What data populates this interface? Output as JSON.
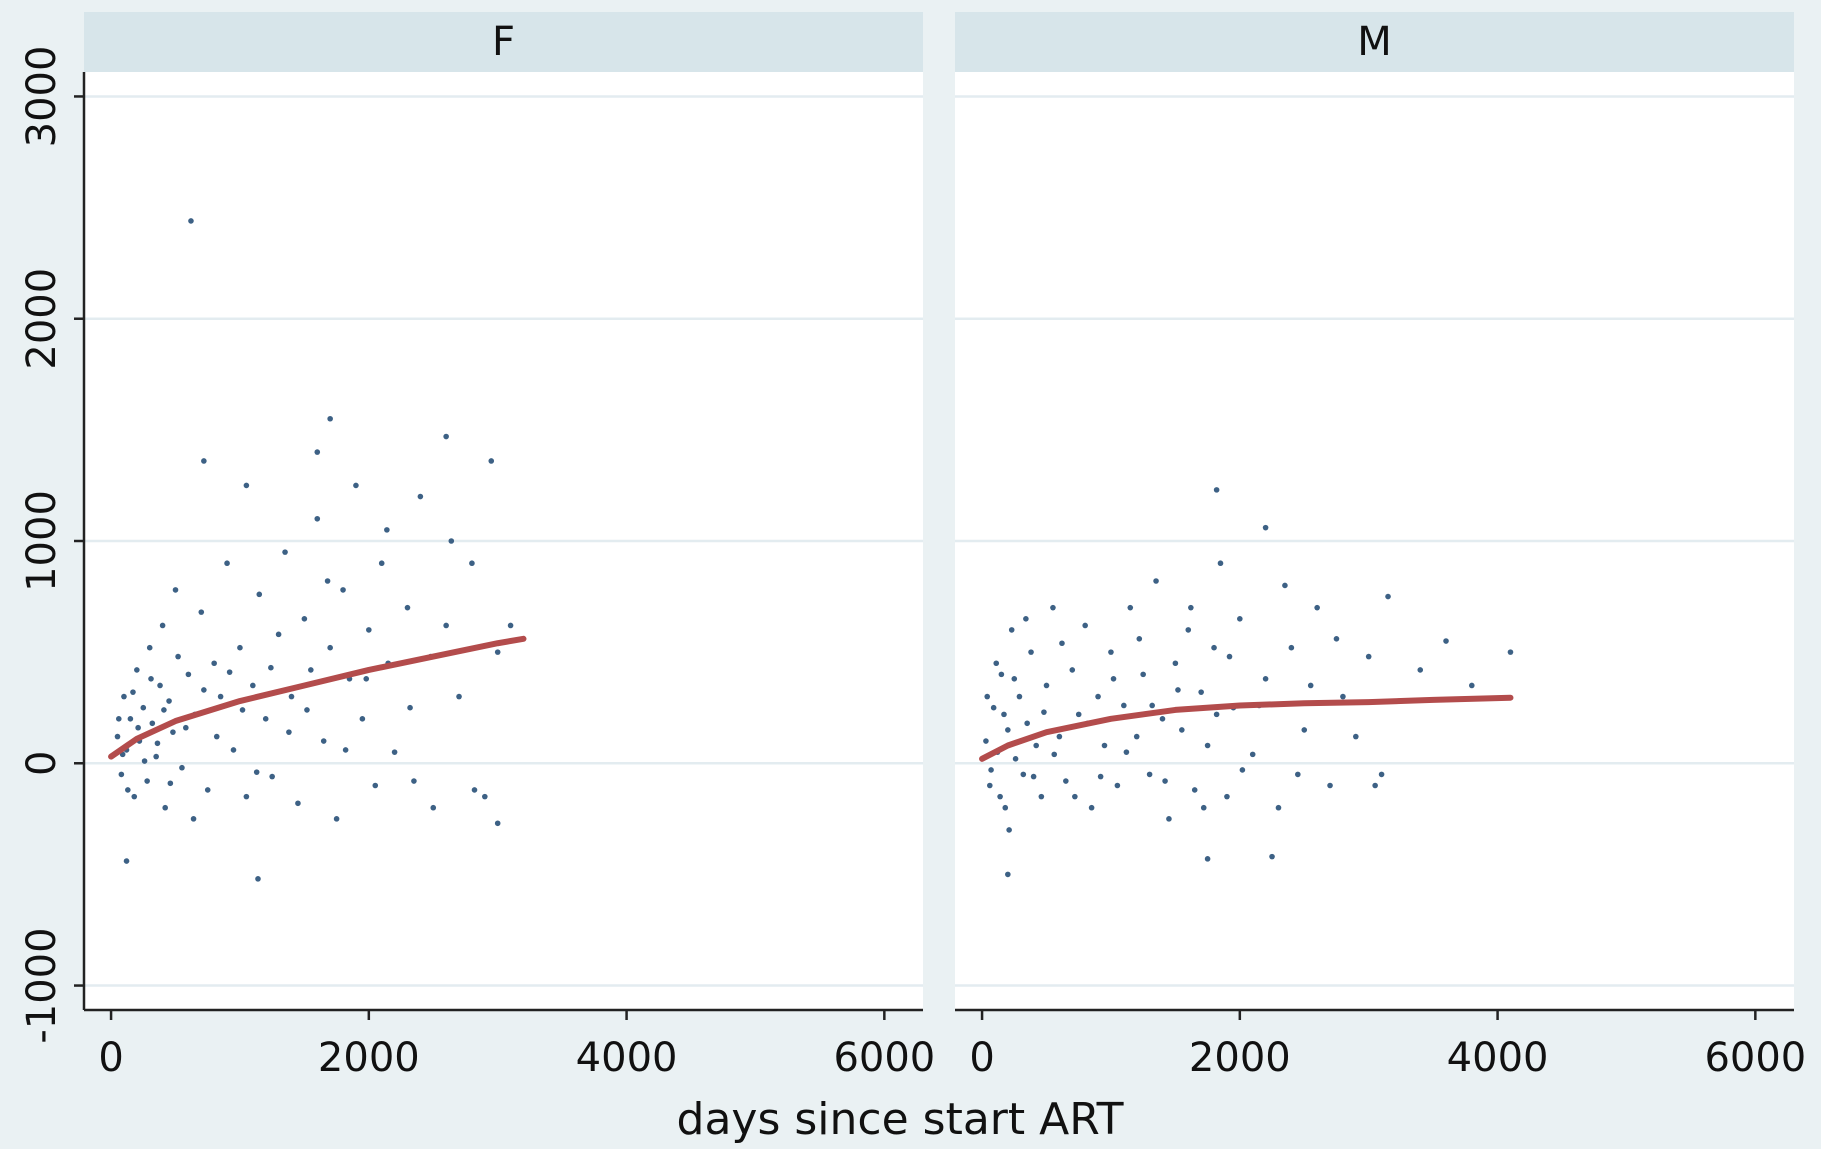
{
  "chart_data": {
    "type": "scatter",
    "xlabel": "days since start ART",
    "xlim": [
      -210,
      6300
    ],
    "xticks": [
      0,
      2000,
      4000,
      6000
    ],
    "ylim": [
      -1110,
      3110
    ],
    "yticks": [
      -1000,
      0,
      1000,
      2000,
      3000
    ],
    "grid": true,
    "panels": [
      {
        "title": "F",
        "points": {
          "color": "#3d6185",
          "x": [
            50,
            80,
            100,
            120,
            150,
            180,
            200,
            220,
            250,
            280,
            300,
            320,
            350,
            380,
            400,
            420,
            450,
            480,
            500,
            550,
            600,
            650,
            700,
            750,
            800,
            850,
            900,
            950,
            1000,
            1050,
            1100,
            1150,
            1200,
            1250,
            1300,
            1350,
            1400,
            1450,
            1500,
            1550,
            1600,
            1650,
            1700,
            1750,
            1800,
            1850,
            1900,
            1950,
            2000,
            2050,
            2100,
            2150,
            2200,
            2300,
            2400,
            2500,
            2600,
            2700,
            2800,
            2900,
            3000,
            3100,
            60,
            90,
            130,
            170,
            210,
            260,
            310,
            360,
            410,
            460,
            520,
            580,
            640,
            720,
            820,
            920,
            1020,
            1130,
            1240,
            1380,
            1520,
            1680,
            1820,
            1980,
            2140,
            2320,
            2480,
            2640,
            2820,
            620,
            1700,
            1140,
            120,
            2600,
            2950,
            3000,
            720,
            1050,
            1600,
            2350
          ],
          "y": [
            120,
            -50,
            300,
            60,
            200,
            -150,
            420,
            100,
            250,
            -80,
            520,
            180,
            30,
            350,
            620,
            -200,
            280,
            140,
            780,
            -20,
            400,
            220,
            680,
            -120,
            450,
            300,
            900,
            60,
            520,
            -150,
            350,
            760,
            200,
            -60,
            580,
            950,
            300,
            -180,
            650,
            420,
            1100,
            100,
            520,
            -250,
            780,
            380,
            1250,
            200,
            600,
            -100,
            900,
            450,
            50,
            700,
            1200,
            -200,
            620,
            300,
            900,
            -150,
            500,
            620,
            200,
            40,
            -120,
            320,
            160,
            10,
            380,
            90,
            240,
            -90,
            480,
            160,
            -250,
            330,
            120,
            410,
            240,
            -40,
            430,
            140,
            240,
            820,
            60,
            380,
            1050,
            250,
            480,
            1000,
            -120,
            2440,
            1550,
            -520,
            -440,
            1470,
            1360,
            -270,
            1360,
            1250,
            1400,
            -80
          ]
        },
        "fit": {
          "color": "#b34c4c",
          "x": [
            0,
            200,
            500,
            1000,
            1500,
            2000,
            2500,
            3000,
            3200
          ],
          "y": [
            30,
            110,
            190,
            280,
            350,
            420,
            480,
            540,
            560
          ]
        }
      },
      {
        "title": "M",
        "points": {
          "color": "#3d6185",
          "x": [
            30,
            60,
            90,
            120,
            150,
            180,
            200,
            230,
            260,
            290,
            320,
            350,
            380,
            420,
            460,
            500,
            550,
            600,
            650,
            700,
            750,
            800,
            850,
            900,
            950,
            1000,
            1050,
            1100,
            1150,
            1200,
            1250,
            1300,
            1350,
            1400,
            1450,
            1500,
            1550,
            1600,
            1650,
            1700,
            1750,
            1800,
            1850,
            1900,
            1950,
            2000,
            2100,
            2200,
            2300,
            2400,
            2500,
            2600,
            2700,
            2800,
            2900,
            3000,
            3100,
            3150,
            40,
            70,
            110,
            140,
            170,
            210,
            250,
            300,
            340,
            400,
            480,
            560,
            620,
            720,
            820,
            920,
            1020,
            1120,
            1220,
            1320,
            1420,
            1520,
            1620,
            1720,
            1820,
            1920,
            2020,
            2150,
            2350,
            2450,
            2550,
            2750,
            1820,
            2200,
            200,
            3800,
            4100,
            3600,
            2250,
            1750,
            3400,
            3050
          ],
          "y": [
            100,
            -100,
            250,
            50,
            400,
            -200,
            150,
            600,
            20,
            300,
            -50,
            180,
            500,
            80,
            -150,
            350,
            700,
            120,
            -80,
            420,
            220,
            620,
            -200,
            300,
            80,
            500,
            -100,
            260,
            700,
            120,
            400,
            -50,
            820,
            200,
            -250,
            450,
            150,
            600,
            -120,
            320,
            80,
            520,
            900,
            -150,
            250,
            650,
            40,
            380,
            -200,
            520,
            150,
            700,
            -100,
            300,
            120,
            480,
            -50,
            750,
            300,
            -30,
            450,
            -150,
            220,
            -300,
            380,
            100,
            650,
            -60,
            230,
            40,
            540,
            -150,
            180,
            -60,
            380,
            50,
            560,
            260,
            -80,
            330,
            700,
            -200,
            220,
            480,
            -30,
            260,
            800,
            -50,
            350,
            560,
            1230,
            1060,
            -500,
            350,
            500,
            550,
            -420,
            -430,
            420,
            -100
          ]
        },
        "fit": {
          "color": "#b34c4c",
          "x": [
            0,
            200,
            500,
            1000,
            1500,
            2000,
            2500,
            3000,
            3500,
            4100
          ],
          "y": [
            20,
            80,
            140,
            200,
            240,
            260,
            270,
            275,
            285,
            295
          ]
        }
      }
    ]
  }
}
